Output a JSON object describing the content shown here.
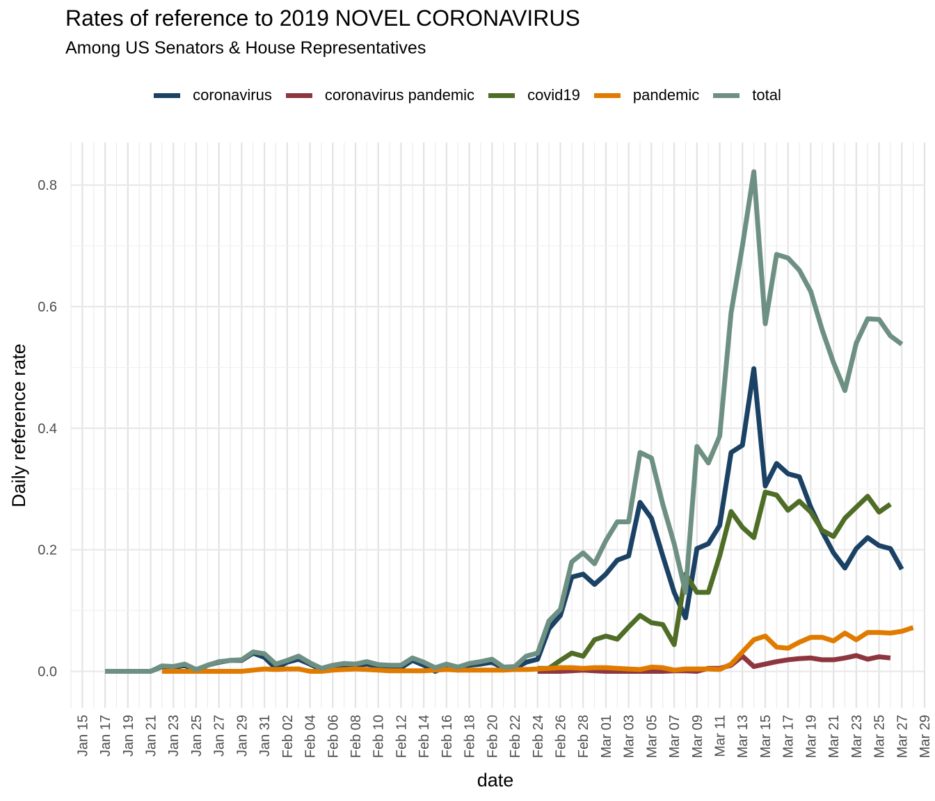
{
  "chart_data": {
    "type": "line",
    "title": "Rates of reference to 2019 NOVEL CORONAVIRUS",
    "subtitle": "Among US Senators & House Representatives",
    "xlabel": "date",
    "ylabel": "Daily reference rate",
    "ylim": [
      -0.06,
      0.87
    ],
    "xlim": [
      "2020-01-14",
      "2020-03-29"
    ],
    "yticks": [
      0.0,
      0.2,
      0.4,
      0.6,
      0.8
    ],
    "ytick_labels": [
      "0.0",
      "0.2",
      "0.4",
      "0.6",
      "0.8"
    ],
    "xtick_labels": [
      "Jan 15",
      "Jan 17",
      "Jan 19",
      "Jan 21",
      "Jan 23",
      "Jan 25",
      "Jan 27",
      "Jan 29",
      "Jan 31",
      "Feb 02",
      "Feb 04",
      "Feb 06",
      "Feb 08",
      "Feb 10",
      "Feb 12",
      "Feb 14",
      "Feb 16",
      "Feb 18",
      "Feb 20",
      "Feb 22",
      "Feb 24",
      "Feb 26",
      "Feb 28",
      "Mar 01",
      "Mar 03",
      "Mar 05",
      "Mar 07",
      "Mar 09",
      "Mar 11",
      "Mar 13",
      "Mar 15",
      "Mar 17",
      "Mar 19",
      "Mar 21",
      "Mar 23",
      "Mar 25",
      "Mar 27",
      "Mar 29"
    ],
    "xtick_dates": [
      "2020-01-15",
      "2020-01-17",
      "2020-01-19",
      "2020-01-21",
      "2020-01-23",
      "2020-01-25",
      "2020-01-27",
      "2020-01-29",
      "2020-01-31",
      "2020-02-02",
      "2020-02-04",
      "2020-02-06",
      "2020-02-08",
      "2020-02-10",
      "2020-02-12",
      "2020-02-14",
      "2020-02-16",
      "2020-02-18",
      "2020-02-20",
      "2020-02-22",
      "2020-02-24",
      "2020-02-26",
      "2020-02-28",
      "2020-03-01",
      "2020-03-03",
      "2020-03-05",
      "2020-03-07",
      "2020-03-09",
      "2020-03-11",
      "2020-03-13",
      "2020-03-15",
      "2020-03-17",
      "2020-03-19",
      "2020-03-21",
      "2020-03-23",
      "2020-03-25",
      "2020-03-27",
      "2020-03-29"
    ],
    "grid": true,
    "legend_position": "top",
    "series": [
      {
        "name": "coronavirus",
        "color": "#1b4265",
        "start": "2020-01-17",
        "values": [
          0.0,
          0.0,
          0.0,
          0.0,
          0.0,
          0.008,
          0.006,
          0.01,
          0.0,
          0.01,
          0.015,
          0.018,
          0.018,
          0.03,
          0.023,
          0.005,
          0.015,
          0.02,
          0.012,
          0.003,
          0.008,
          0.01,
          0.01,
          0.012,
          0.008,
          0.006,
          0.006,
          0.018,
          0.01,
          0.0,
          0.008,
          0.002,
          0.01,
          0.012,
          0.015,
          0.005,
          0.005,
          0.015,
          0.02,
          0.07,
          0.092,
          0.155,
          0.16,
          0.143,
          0.16,
          0.183,
          0.19,
          0.278,
          0.252,
          0.19,
          0.13,
          0.088,
          0.202,
          0.21,
          0.24,
          0.36,
          0.372,
          0.498,
          0.305,
          0.342,
          0.325,
          0.32,
          0.27,
          0.23,
          0.195,
          0.17,
          0.202,
          0.22,
          0.207,
          0.202,
          0.168
        ]
      },
      {
        "name": "coronavirus pandemic",
        "color": "#8e3640",
        "start": "2020-02-24",
        "values": [
          0.0,
          0.0,
          0.0,
          0.001,
          0.002,
          0.001,
          0.0,
          0.0,
          0.0,
          0.0,
          0.0,
          0.0,
          0.001,
          0.001,
          0.0,
          0.005,
          0.005,
          0.01,
          0.025,
          0.008,
          0.012,
          0.016,
          0.019,
          0.021,
          0.022,
          0.019,
          0.019,
          0.022,
          0.026,
          0.02,
          0.024,
          0.022
        ]
      },
      {
        "name": "covid19",
        "color": "#4f6d26",
        "start": "2020-02-24",
        "values": [
          0.005,
          0.005,
          0.018,
          0.03,
          0.025,
          0.052,
          0.058,
          0.053,
          0.073,
          0.092,
          0.08,
          0.077,
          0.044,
          0.16,
          0.13,
          0.13,
          0.19,
          0.263,
          0.237,
          0.22,
          0.295,
          0.29,
          0.265,
          0.28,
          0.262,
          0.232,
          0.222,
          0.252,
          0.27,
          0.288,
          0.262,
          0.275
        ]
      },
      {
        "name": "pandemic",
        "color": "#e07b00",
        "start": "2020-01-22",
        "values": [
          0.0,
          0.0,
          0.0,
          0.0,
          0.0,
          0.0,
          0.0,
          0.0,
          0.002,
          0.004,
          0.003,
          0.004,
          0.004,
          0.0,
          0.0,
          0.002,
          0.003,
          0.004,
          0.003,
          0.002,
          0.001,
          0.001,
          0.001,
          0.001,
          0.002,
          0.003,
          0.002,
          0.002,
          0.002,
          0.002,
          0.002,
          0.003,
          0.003,
          0.004,
          0.005,
          0.006,
          0.006,
          0.005,
          0.006,
          0.006,
          0.005,
          0.004,
          0.003,
          0.007,
          0.006,
          0.002,
          0.004,
          0.004,
          0.004,
          0.003,
          0.012,
          0.032,
          0.052,
          0.058,
          0.04,
          0.038,
          0.048,
          0.056,
          0.056,
          0.05,
          0.063,
          0.052,
          0.064,
          0.064,
          0.063,
          0.066,
          0.072
        ]
      },
      {
        "name": "total",
        "color": "#6e9083",
        "start": "2020-01-17",
        "values": [
          0.0,
          0.0,
          0.0,
          0.0,
          0.0,
          0.009,
          0.008,
          0.012,
          0.003,
          0.01,
          0.016,
          0.018,
          0.019,
          0.032,
          0.029,
          0.012,
          0.018,
          0.025,
          0.014,
          0.005,
          0.01,
          0.013,
          0.012,
          0.016,
          0.011,
          0.01,
          0.01,
          0.022,
          0.015,
          0.006,
          0.012,
          0.007,
          0.013,
          0.016,
          0.02,
          0.007,
          0.008,
          0.025,
          0.03,
          0.083,
          0.102,
          0.18,
          0.195,
          0.177,
          0.215,
          0.246,
          0.246,
          0.36,
          0.351,
          0.275,
          0.21,
          0.13,
          0.37,
          0.343,
          0.387,
          0.59,
          0.7,
          0.822,
          0.572,
          0.686,
          0.68,
          0.66,
          0.625,
          0.562,
          0.508,
          0.462,
          0.54,
          0.58,
          0.579,
          0.552,
          0.538
        ]
      }
    ]
  }
}
